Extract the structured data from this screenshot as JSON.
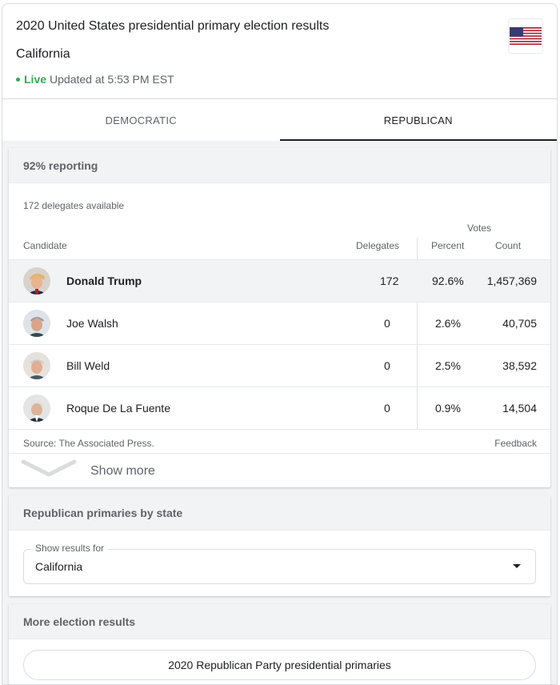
{
  "header": {
    "title": "2020 United States presidential primary election results",
    "subtitle": "California",
    "live_label": "Live",
    "updated_text": "Updated at 5:53 PM EST",
    "flag_icon": "us-flag-icon"
  },
  "tabs": [
    {
      "label": "DEMOCRATIC",
      "active": false
    },
    {
      "label": "REPUBLICAN",
      "active": true
    }
  ],
  "results": {
    "reporting": "92% reporting",
    "delegates_available": "172 delegates available",
    "columns": {
      "candidate": "Candidate",
      "delegates": "Delegates",
      "votes_group": "Votes",
      "percent": "Percent",
      "count": "Count"
    },
    "rows": [
      {
        "name": "Donald Trump",
        "delegates": "172",
        "percent": "92.6%",
        "count": "1,457,369",
        "leader": true
      },
      {
        "name": "Joe Walsh",
        "delegates": "0",
        "percent": "2.6%",
        "count": "40,705",
        "leader": false
      },
      {
        "name": "Bill Weld",
        "delegates": "0",
        "percent": "2.5%",
        "count": "38,592",
        "leader": false
      },
      {
        "name": "Roque De La Fuente",
        "delegates": "0",
        "percent": "0.9%",
        "count": "14,504",
        "leader": false
      }
    ],
    "source": "Source: The Associated Press.",
    "feedback": "Feedback",
    "show_more": "Show more"
  },
  "by_state": {
    "heading": "Republican primaries by state",
    "select_label": "Show results for",
    "select_value": "California"
  },
  "more_results": {
    "heading": "More election results",
    "link": "2020 Republican Party presidential primaries"
  },
  "colors": {
    "live_green": "#34a853",
    "panel_header_bg": "#f1f3f4",
    "text_primary": "#202124",
    "text_secondary": "#5f6368"
  }
}
